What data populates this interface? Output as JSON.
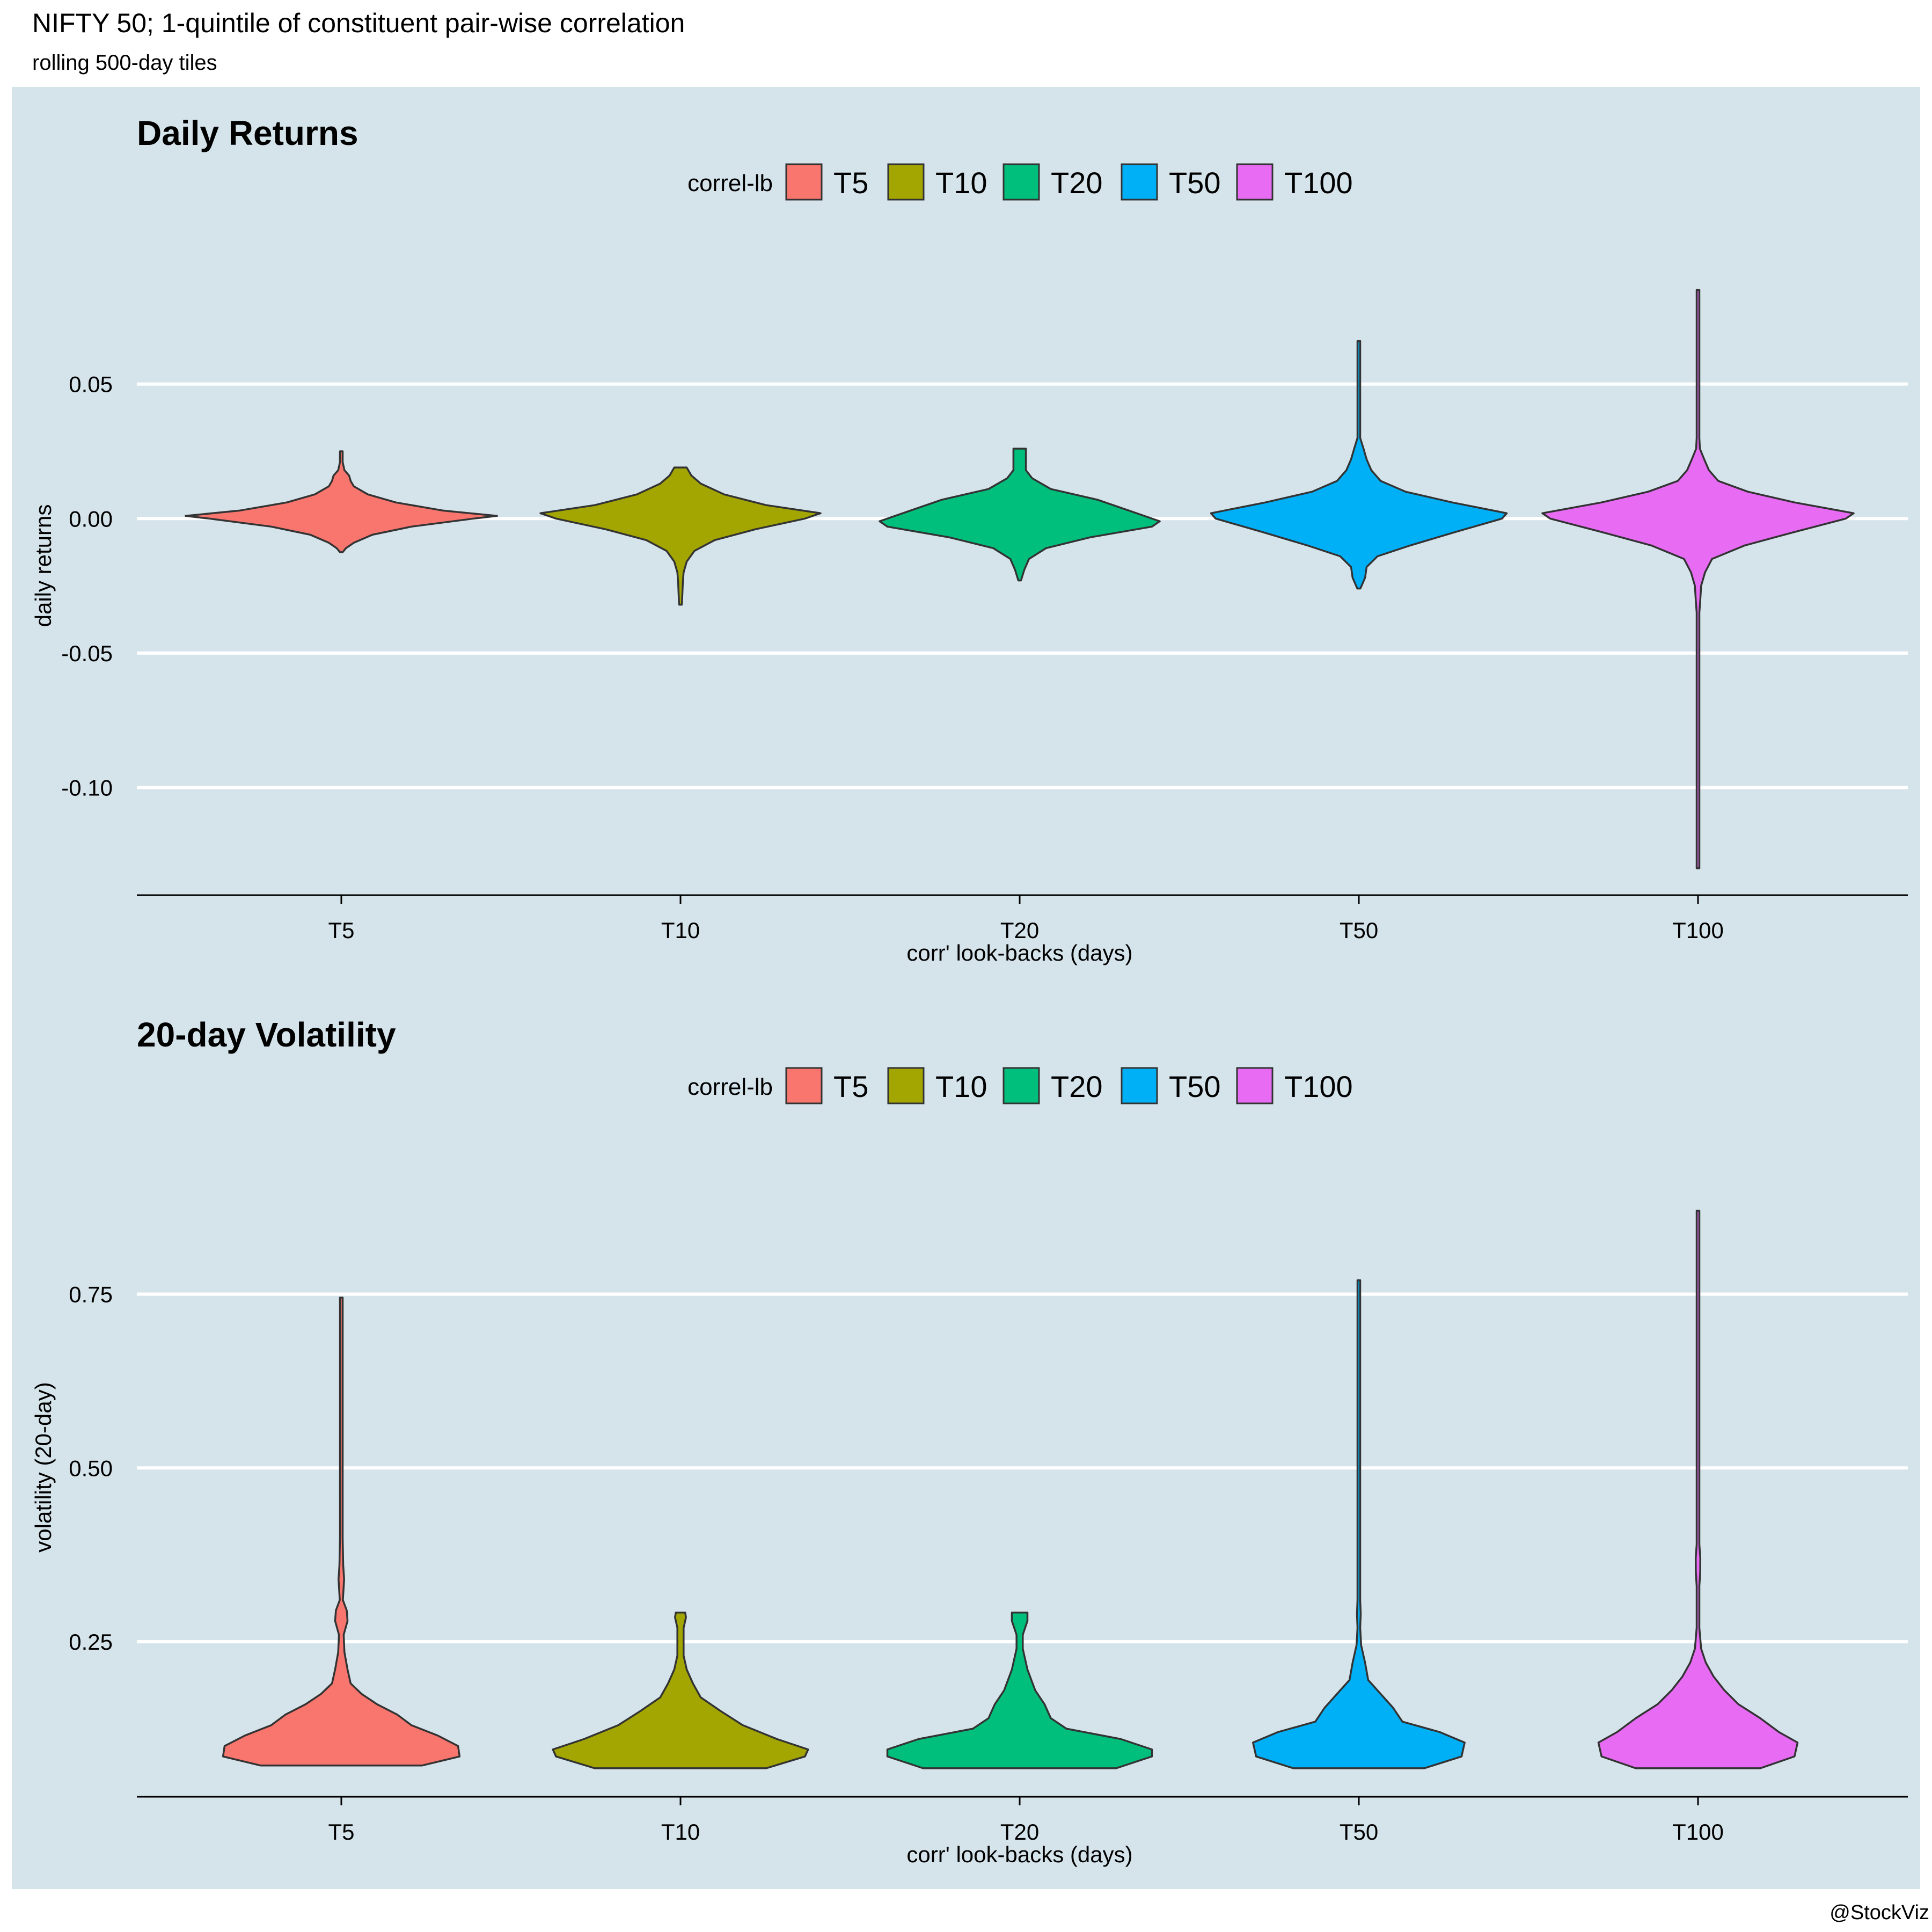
{
  "page": {
    "title": "NIFTY 50; 1-quintile of constituent pair-wise correlation",
    "subtitle": "rolling 500-day tiles",
    "credit": "@StockViz"
  },
  "colors": {
    "panel_bg": "#d5e4eb",
    "grid": "#ffffff",
    "outline": "#333333",
    "T5": "#f8766d",
    "T10": "#a3a500",
    "T20": "#00bf7d",
    "T50": "#00b0f6",
    "T100": "#e76bf3"
  },
  "chart_data": [
    {
      "type": "violin",
      "title": "Daily Returns",
      "xlabel": "corr' look-backs (days)",
      "ylabel": "daily returns",
      "ylim": [
        -0.14,
        0.105
      ],
      "yticks": [
        -0.1,
        -0.05,
        0.0,
        0.05
      ],
      "ytick_labels": [
        "-0.10",
        "-0.05",
        "0.00",
        "0.05"
      ],
      "grid": true,
      "legend": {
        "title": "correl-lb",
        "position": "top",
        "entries": [
          "T5",
          "T10",
          "T20",
          "T50",
          "T100"
        ]
      },
      "categories": [
        "T5",
        "T10",
        "T20",
        "T50",
        "T100"
      ],
      "series": [
        {
          "name": "T5",
          "profile": [
            [
              -0.0125,
              0.001
            ],
            [
              -0.011,
              0.03
            ],
            [
              -0.009,
              0.08
            ],
            [
              -0.006,
              0.2
            ],
            [
              -0.003,
              0.45
            ],
            [
              0.0,
              0.85
            ],
            [
              0.001,
              1.0
            ],
            [
              0.003,
              0.65
            ],
            [
              0.006,
              0.35
            ],
            [
              0.009,
              0.17
            ],
            [
              0.012,
              0.08
            ],
            [
              0.014,
              0.06
            ],
            [
              0.016,
              0.05
            ],
            [
              0.018,
              0.02
            ],
            [
              0.021,
              0.008
            ],
            [
              0.025,
              0.004
            ]
          ]
        },
        {
          "name": "T10",
          "profile": [
            [
              -0.032,
              0.001
            ],
            [
              -0.028,
              0.012
            ],
            [
              -0.024,
              0.015
            ],
            [
              -0.02,
              0.02
            ],
            [
              -0.016,
              0.04
            ],
            [
              -0.012,
              0.09
            ],
            [
              -0.008,
              0.22
            ],
            [
              -0.004,
              0.48
            ],
            [
              0.0,
              0.8
            ],
            [
              0.002,
              0.9
            ],
            [
              0.005,
              0.55
            ],
            [
              0.009,
              0.28
            ],
            [
              0.013,
              0.13
            ],
            [
              0.016,
              0.07
            ],
            [
              0.019,
              0.04
            ]
          ]
        },
        {
          "name": "T20",
          "profile": [
            [
              -0.023,
              0.001
            ],
            [
              -0.019,
              0.03
            ],
            [
              -0.015,
              0.06
            ],
            [
              -0.011,
              0.17
            ],
            [
              -0.007,
              0.45
            ],
            [
              -0.003,
              0.85
            ],
            [
              -0.001,
              0.9
            ],
            [
              0.003,
              0.7
            ],
            [
              0.007,
              0.5
            ],
            [
              0.011,
              0.2
            ],
            [
              0.015,
              0.08
            ],
            [
              0.018,
              0.04
            ],
            [
              0.022,
              0.04
            ],
            [
              0.026,
              0.04
            ]
          ]
        },
        {
          "name": "T50",
          "profile": [
            [
              -0.026,
              0.01
            ],
            [
              -0.022,
              0.04
            ],
            [
              -0.018,
              0.05
            ],
            [
              -0.014,
              0.12
            ],
            [
              -0.01,
              0.33
            ],
            [
              -0.005,
              0.62
            ],
            [
              0.0,
              0.92
            ],
            [
              0.002,
              0.95
            ],
            [
              0.006,
              0.6
            ],
            [
              0.01,
              0.3
            ],
            [
              0.014,
              0.14
            ],
            [
              0.018,
              0.08
            ],
            [
              0.022,
              0.05
            ],
            [
              0.026,
              0.03
            ],
            [
              0.03,
              0.006
            ],
            [
              0.05,
              0.004
            ],
            [
              0.058,
              0.008
            ],
            [
              0.062,
              0.004
            ],
            [
              0.066,
              0.006
            ]
          ]
        },
        {
          "name": "T100",
          "profile": [
            [
              -0.13,
              0.004
            ],
            [
              -0.11,
              0.003
            ],
            [
              -0.09,
              0.003
            ],
            [
              -0.07,
              0.003
            ],
            [
              -0.055,
              0.006
            ],
            [
              -0.045,
              0.004
            ],
            [
              -0.04,
              0.008
            ],
            [
              -0.035,
              0.005
            ],
            [
              -0.03,
              0.015
            ],
            [
              -0.025,
              0.02
            ],
            [
              -0.02,
              0.045
            ],
            [
              -0.015,
              0.09
            ],
            [
              -0.01,
              0.3
            ],
            [
              -0.005,
              0.62
            ],
            [
              0.0,
              0.95
            ],
            [
              0.002,
              1.0
            ],
            [
              0.006,
              0.62
            ],
            [
              0.01,
              0.32
            ],
            [
              0.014,
              0.13
            ],
            [
              0.018,
              0.07
            ],
            [
              0.022,
              0.04
            ],
            [
              0.026,
              0.012
            ],
            [
              0.03,
              0.006
            ],
            [
              0.045,
              0.004
            ],
            [
              0.05,
              0.006
            ],
            [
              0.06,
              0.006
            ],
            [
              0.075,
              0.003
            ],
            [
              0.085,
              0.004
            ]
          ]
        }
      ]
    },
    {
      "type": "violin",
      "title": "20-day Volatility",
      "xlabel": "corr' look-backs (days)",
      "ylabel": "volatility (20-day)",
      "ylim": [
        0.027,
        0.975
      ],
      "yticks": [
        0.25,
        0.5,
        0.75
      ],
      "ytick_labels": [
        "0.25",
        "0.50",
        "0.75"
      ],
      "grid": true,
      "legend": {
        "title": "correl-lb",
        "position": "top",
        "entries": [
          "T5",
          "T10",
          "T20",
          "T50",
          "T100"
        ]
      },
      "categories": [
        "T5",
        "T10",
        "T20",
        "T50",
        "T100"
      ],
      "series": [
        {
          "name": "T5",
          "profile": [
            [
              0.072,
              0.52
            ],
            [
              0.085,
              0.76
            ],
            [
              0.1,
              0.75
            ],
            [
              0.115,
              0.62
            ],
            [
              0.13,
              0.45
            ],
            [
              0.145,
              0.36
            ],
            [
              0.16,
              0.23
            ],
            [
              0.175,
              0.13
            ],
            [
              0.19,
              0.06
            ],
            [
              0.21,
              0.04
            ],
            [
              0.235,
              0.02
            ],
            [
              0.26,
              0.015
            ],
            [
              0.28,
              0.04
            ],
            [
              0.295,
              0.035
            ],
            [
              0.31,
              0.01
            ],
            [
              0.34,
              0.018
            ],
            [
              0.36,
              0.012
            ],
            [
              0.4,
              0.005
            ],
            [
              0.5,
              0.004
            ],
            [
              0.6,
              0.004
            ],
            [
              0.7,
              0.004
            ],
            [
              0.745,
              0.006
            ]
          ]
        },
        {
          "name": "T10",
          "profile": [
            [
              0.068,
              0.55
            ],
            [
              0.085,
              0.8
            ],
            [
              0.095,
              0.82
            ],
            [
              0.11,
              0.62
            ],
            [
              0.13,
              0.4
            ],
            [
              0.15,
              0.26
            ],
            [
              0.17,
              0.13
            ],
            [
              0.19,
              0.08
            ],
            [
              0.21,
              0.04
            ],
            [
              0.23,
              0.02
            ],
            [
              0.25,
              0.02
            ],
            [
              0.27,
              0.02
            ],
            [
              0.285,
              0.035
            ],
            [
              0.292,
              0.03
            ]
          ]
        },
        {
          "name": "T20",
          "profile": [
            [
              0.068,
              0.62
            ],
            [
              0.085,
              0.85
            ],
            [
              0.095,
              0.85
            ],
            [
              0.11,
              0.65
            ],
            [
              0.125,
              0.3
            ],
            [
              0.14,
              0.2
            ],
            [
              0.16,
              0.16
            ],
            [
              0.18,
              0.1
            ],
            [
              0.21,
              0.05
            ],
            [
              0.24,
              0.02
            ],
            [
              0.26,
              0.02
            ],
            [
              0.28,
              0.05
            ],
            [
              0.292,
              0.05
            ]
          ]
        },
        {
          "name": "T50",
          "profile": [
            [
              0.068,
              0.42
            ],
            [
              0.085,
              0.66
            ],
            [
              0.105,
              0.68
            ],
            [
              0.12,
              0.52
            ],
            [
              0.135,
              0.28
            ],
            [
              0.155,
              0.22
            ],
            [
              0.175,
              0.14
            ],
            [
              0.195,
              0.06
            ],
            [
              0.22,
              0.04
            ],
            [
              0.245,
              0.015
            ],
            [
              0.27,
              0.008
            ],
            [
              0.29,
              0.012
            ],
            [
              0.31,
              0.005
            ],
            [
              0.4,
              0.004
            ],
            [
              0.6,
              0.004
            ],
            [
              0.64,
              0.006
            ],
            [
              0.66,
              0.004
            ],
            [
              0.72,
              0.004
            ],
            [
              0.76,
              0.006
            ],
            [
              0.77,
              0.004
            ]
          ]
        },
        {
          "name": "T100",
          "profile": [
            [
              0.068,
              0.4
            ],
            [
              0.085,
              0.62
            ],
            [
              0.105,
              0.64
            ],
            [
              0.12,
              0.52
            ],
            [
              0.14,
              0.4
            ],
            [
              0.16,
              0.26
            ],
            [
              0.18,
              0.17
            ],
            [
              0.2,
              0.1
            ],
            [
              0.22,
              0.05
            ],
            [
              0.24,
              0.02
            ],
            [
              0.27,
              0.008
            ],
            [
              0.3,
              0.006
            ],
            [
              0.33,
              0.008
            ],
            [
              0.35,
              0.014
            ],
            [
              0.37,
              0.015
            ],
            [
              0.39,
              0.006
            ],
            [
              0.45,
              0.004
            ],
            [
              0.55,
              0.008
            ],
            [
              0.6,
              0.004
            ],
            [
              0.65,
              0.008
            ],
            [
              0.72,
              0.006
            ],
            [
              0.8,
              0.004
            ],
            [
              0.84,
              0.008
            ],
            [
              0.87,
              0.008
            ]
          ]
        }
      ]
    }
  ]
}
